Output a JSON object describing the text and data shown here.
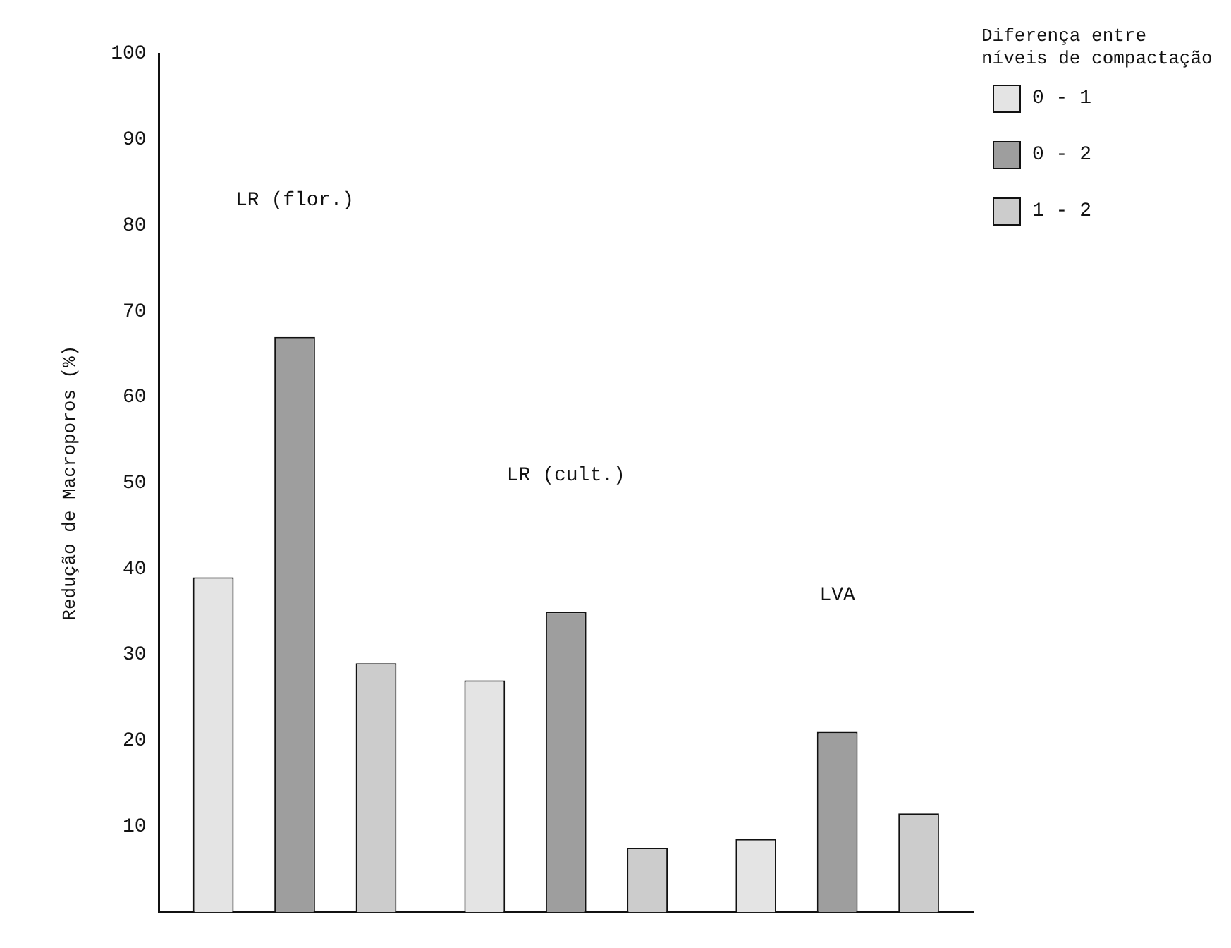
{
  "chart_data": {
    "type": "bar",
    "ylabel": "Redução de Macroporos (%)",
    "legend_title": "Diferença entre níveis de compactação",
    "categories": [
      "LR (flor.)",
      "LR (cult.)",
      "LVA"
    ],
    "series": [
      {
        "name": "0 - 1",
        "color": "#e4e4e4",
        "values": [
          39,
          27,
          8.5
        ]
      },
      {
        "name": "0 - 2",
        "color": "#9e9e9e",
        "values": [
          67,
          35,
          21
        ]
      },
      {
        "name": "1 - 2",
        "color": "#cccccc",
        "values": [
          29,
          7.5,
          11.5
        ]
      }
    ],
    "ylim": [
      0,
      100
    ],
    "yticks": [
      10,
      20,
      30,
      40,
      50,
      60,
      70,
      80,
      90,
      100
    ],
    "grid": false,
    "legend": "top right"
  }
}
